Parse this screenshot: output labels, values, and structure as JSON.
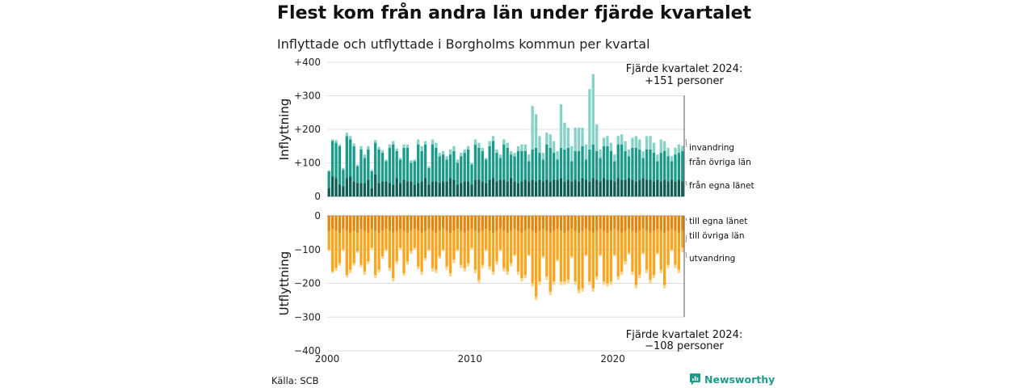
{
  "title": "Flest kom från andra län under fjärde kvartalet",
  "subtitle": "Inflyttade och utflyttade i Borgholms kommun per kvartal",
  "source": "Källa: SCB",
  "brand": "Newsworthy",
  "colors": {
    "egna_in": "#0c5e52",
    "ovriga_in": "#1a9a88",
    "invandring": "#86d2c6",
    "egna_ut": "#e4860c",
    "ovriga_ut": "#f9a51e",
    "utvandring": "#fcd48c",
    "brand": "#1f9a8a"
  },
  "chart_data": {
    "type": "bar",
    "stacked": true,
    "x_ticks": [
      "2000",
      "2010",
      "2020"
    ],
    "panels": [
      {
        "ylabel": "Inflyttning",
        "ylim": [
          0,
          400
        ],
        "y_ticks": [
          "+400",
          "+300",
          "+200",
          "+100",
          "0"
        ],
        "annotation": [
          "Fjärde kvartalet 2024:",
          "+151 personer"
        ],
        "legend": [
          "invandring",
          "från övriga län",
          "från egna länet"
        ]
      },
      {
        "ylabel": "Utflyttning",
        "ylim": [
          -400,
          0
        ],
        "y_ticks": [
          "0",
          "−100",
          "−200",
          "−300",
          "−400"
        ],
        "annotation": [
          "Fjärde kvartalet 2024:",
          "−108 personer"
        ],
        "legend": [
          "till egna länet",
          "till övriga län",
          "utvandring"
        ]
      }
    ],
    "quarters_start": "2000 Q1",
    "quarters_end": "2024 Q4",
    "series_in": {
      "names": [
        "från egna länet",
        "från övriga län",
        "invandring"
      ],
      "egna": [
        25,
        60,
        55,
        35,
        30,
        55,
        60,
        45,
        40,
        40,
        40,
        50,
        25,
        65,
        40,
        45,
        45,
        40,
        35,
        55,
        40,
        50,
        45,
        45,
        35,
        40,
        45,
        55,
        35,
        45,
        45,
        40,
        45,
        45,
        55,
        50,
        35,
        40,
        45,
        45,
        35,
        50,
        50,
        45,
        40,
        50,
        55,
        45,
        50,
        50,
        45,
        55,
        45,
        40,
        45,
        50,
        45,
        50,
        45,
        50,
        45,
        50,
        45,
        50,
        50,
        55,
        45,
        50,
        45,
        50,
        45,
        55,
        50,
        45,
        55,
        50,
        45,
        55,
        50,
        50,
        45,
        55,
        50,
        50,
        55,
        50,
        45,
        50,
        55,
        50,
        50,
        45,
        50,
        45,
        50,
        45,
        50,
        45,
        50,
        45
      ],
      "ovriga": [
        50,
        105,
        105,
        115,
        50,
        125,
        110,
        105,
        50,
        100,
        75,
        90,
        50,
        95,
        100,
        85,
        60,
        105,
        120,
        80,
        70,
        95,
        100,
        55,
        70,
        115,
        90,
        100,
        50,
        110,
        100,
        80,
        80,
        65,
        70,
        85,
        65,
        80,
        85,
        95,
        60,
        105,
        95,
        90,
        70,
        100,
        110,
        85,
        65,
        105,
        100,
        70,
        75,
        95,
        90,
        85,
        60,
        90,
        100,
        80,
        65,
        105,
        100,
        80,
        60,
        90,
        95,
        95,
        60,
        85,
        90,
        95,
        60,
        95,
        100,
        85,
        70,
        95,
        100,
        85,
        60,
        100,
        105,
        85,
        65,
        95,
        100,
        90,
        60,
        90,
        90,
        85,
        55,
        85,
        85,
        75,
        55,
        80,
        80,
        90
      ],
      "inv": [
        3,
        5,
        8,
        5,
        5,
        10,
        10,
        8,
        5,
        10,
        10,
        10,
        5,
        8,
        8,
        8,
        5,
        10,
        10,
        8,
        5,
        10,
        10,
        8,
        5,
        15,
        15,
        10,
        5,
        15,
        15,
        10,
        10,
        10,
        15,
        15,
        10,
        10,
        10,
        10,
        5,
        15,
        15,
        10,
        5,
        15,
        15,
        10,
        10,
        15,
        15,
        10,
        10,
        15,
        20,
        20,
        20,
        130,
        100,
        50,
        20,
        35,
        40,
        35,
        25,
        130,
        80,
        60,
        45,
        70,
        70,
        55,
        45,
        180,
        210,
        80,
        25,
        25,
        30,
        25,
        20,
        25,
        30,
        30,
        20,
        30,
        35,
        30,
        20,
        40,
        40,
        30,
        20,
        40,
        30,
        25,
        15,
        20,
        25,
        16
      ]
    },
    "series_out": {
      "names": [
        "till egna länet",
        "till övriga län",
        "utvandring"
      ],
      "egna": [
        45,
        40,
        45,
        50,
        40,
        45,
        50,
        45,
        50,
        40,
        45,
        50,
        40,
        45,
        50,
        45,
        40,
        45,
        50,
        45,
        40,
        45,
        50,
        45,
        40,
        45,
        50,
        45,
        40,
        45,
        50,
        45,
        40,
        45,
        50,
        45,
        40,
        45,
        50,
        45,
        40,
        45,
        50,
        45,
        40,
        45,
        50,
        45,
        40,
        45,
        50,
        45,
        40,
        45,
        50,
        45,
        40,
        45,
        50,
        45,
        40,
        45,
        50,
        45,
        40,
        45,
        50,
        45,
        40,
        45,
        50,
        45,
        40,
        45,
        50,
        45,
        40,
        45,
        50,
        45,
        40,
        45,
        50,
        45,
        40,
        45,
        50,
        45,
        40,
        45,
        50,
        45,
        40,
        45,
        50,
        45,
        40,
        45,
        50,
        45
      ],
      "ovriga": [
        55,
        125,
        110,
        90,
        60,
        130,
        110,
        95,
        55,
        105,
        120,
        85,
        55,
        130,
        110,
        75,
        60,
        110,
        135,
        90,
        55,
        125,
        85,
        60,
        55,
        105,
        115,
        80,
        60,
        110,
        110,
        75,
        60,
        105,
        120,
        85,
        60,
        100,
        105,
        95,
        55,
        115,
        140,
        100,
        60,
        105,
        115,
        90,
        60,
        110,
        115,
        95,
        75,
        120,
        135,
        130,
        75,
        155,
        190,
        150,
        80,
        135,
        175,
        150,
        90,
        150,
        145,
        145,
        80,
        150,
        170,
        170,
        75,
        150,
        165,
        135,
        75,
        150,
        150,
        150,
        75,
        135,
        115,
        90,
        70,
        120,
        155,
        130,
        70,
        115,
        140,
        130,
        70,
        115,
        155,
        100,
        60,
        100,
        110,
        50
      ],
      "utv": [
        5,
        5,
        8,
        8,
        5,
        8,
        10,
        8,
        5,
        8,
        10,
        8,
        5,
        10,
        8,
        8,
        5,
        8,
        10,
        8,
        5,
        8,
        10,
        8,
        5,
        8,
        10,
        8,
        5,
        10,
        10,
        8,
        5,
        10,
        10,
        10,
        5,
        10,
        10,
        10,
        5,
        10,
        10,
        10,
        5,
        10,
        10,
        10,
        5,
        10,
        10,
        10,
        5,
        10,
        10,
        10,
        5,
        10,
        10,
        10,
        5,
        10,
        10,
        10,
        5,
        10,
        10,
        10,
        5,
        10,
        10,
        10,
        5,
        10,
        10,
        10,
        5,
        10,
        10,
        10,
        5,
        10,
        10,
        10,
        5,
        10,
        10,
        10,
        5,
        10,
        10,
        10,
        5,
        10,
        10,
        10,
        5,
        10,
        10,
        13
      ]
    }
  }
}
